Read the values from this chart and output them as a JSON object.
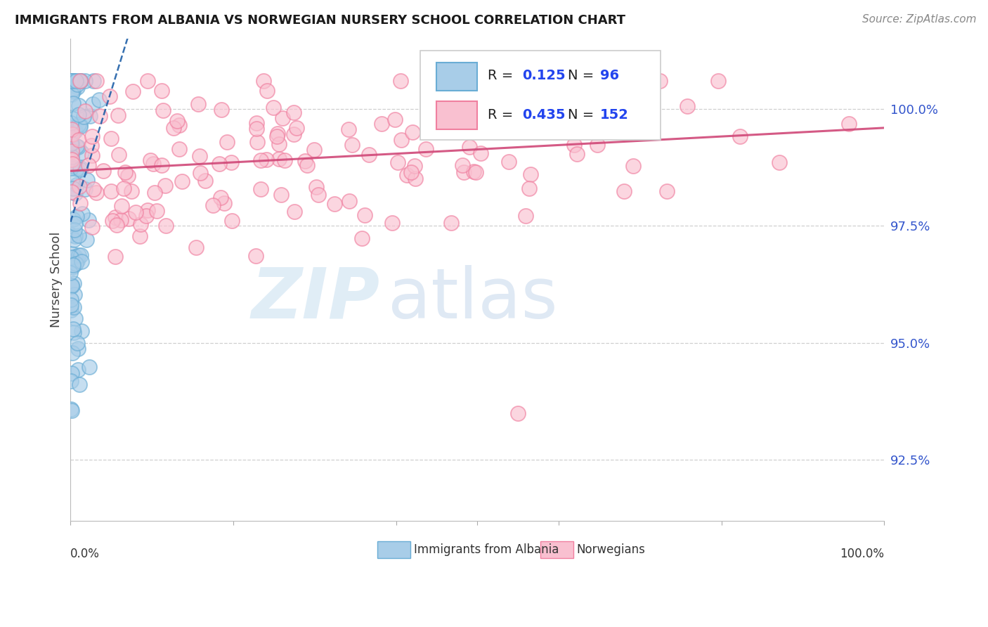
{
  "title": "IMMIGRANTS FROM ALBANIA VS NORWEGIAN NURSERY SCHOOL CORRELATION CHART",
  "source_text": "Source: ZipAtlas.com",
  "ylabel": "Nursery School",
  "xlim": [
    0.0,
    1.0
  ],
  "ylim": [
    91.2,
    101.5
  ],
  "y_ticks": [
    92.5,
    95.0,
    97.5,
    100.0
  ],
  "y_tick_labels": [
    "92.5%",
    "95.0%",
    "97.5%",
    "100.0%"
  ],
  "albania_color": "#a8cde8",
  "albania_edge_color": "#6aadd5",
  "norwegian_color": "#f9c0d0",
  "norwegian_edge_color": "#f080a0",
  "albania_R": 0.125,
  "albania_N": 96,
  "norwegian_R": 0.435,
  "norwegian_N": 152,
  "trendline_albania_color": "#2060a8",
  "trendline_norwegian_color": "#d04878",
  "legend_label_albania": "Immigrants from Albania",
  "legend_label_norwegian": "Norwegians",
  "background_color": "#ffffff",
  "grid_color": "#bbbbbb",
  "title_color": "#1a1a1a",
  "ylabel_color": "#444444",
  "tick_label_color": "#3355cc",
  "source_color": "#888888",
  "r_value_color": "#2244ee",
  "legend_text_color": "#333333",
  "watermark_color1": "#c8dff0",
  "watermark_color2": "#b0c8e4"
}
